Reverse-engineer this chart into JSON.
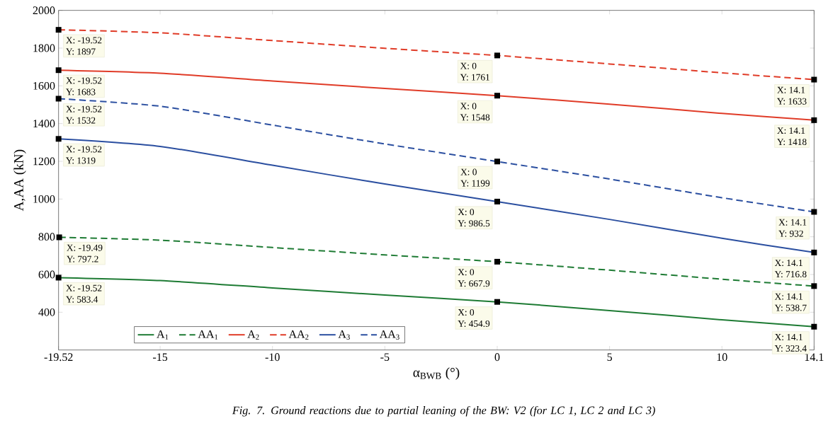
{
  "chart_data": {
    "type": "line",
    "xlabel": "α$_{BWB}$ (°)",
    "ylabel": "A,AA (kN)",
    "xlim": [
      -19.52,
      14.1
    ],
    "ylim": [
      200,
      2000
    ],
    "xticks": [
      -19.52,
      -15,
      -10,
      -5,
      0,
      5,
      10,
      14.1
    ],
    "yticks": [
      400,
      600,
      800,
      1000,
      1200,
      1400,
      1600,
      1800,
      2000
    ],
    "legend": "bottom left",
    "grid": false,
    "series": [
      {
        "name": "A$_{1}$",
        "color": "#1e7b34",
        "line_style": "solid",
        "x": [
          -19.52,
          -15,
          -10,
          -5,
          0,
          5,
          10,
          14.1
        ],
        "values": [
          583.4,
          568,
          529,
          491,
          454.9,
          409,
          360,
          323.4
        ]
      },
      {
        "name": "AA$_{1}$",
        "color": "#1e7b34",
        "line_style": "dashed",
        "x": [
          -19.49,
          -15,
          -10,
          -5,
          0,
          5,
          10,
          14.1
        ],
        "values": [
          797.2,
          782,
          743,
          704,
          667.9,
          623,
          575,
          538.7
        ]
      },
      {
        "name": "A$_{2}$",
        "color": "#e03c28",
        "line_style": "solid",
        "x": [
          -19.52,
          -15,
          -10,
          -5,
          0,
          5,
          10,
          14.1
        ],
        "values": [
          1683,
          1667,
          1626,
          1586,
          1548,
          1503,
          1454,
          1418
        ]
      },
      {
        "name": "AA$_{2}$",
        "color": "#e03c28",
        "line_style": "dashed",
        "x": [
          -19.52,
          -15,
          -10,
          -5,
          0,
          5,
          10,
          14.1
        ],
        "values": [
          1897,
          1881,
          1840,
          1799,
          1761,
          1716,
          1669,
          1633
        ]
      },
      {
        "name": "A$_{3}$",
        "color": "#2b4fa0",
        "line_style": "solid",
        "x": [
          -19.52,
          -15,
          -10,
          -5,
          0,
          5,
          10,
          14.1
        ],
        "values": [
          1319,
          1279,
          1179,
          1080,
          986.5,
          892,
          792,
          716.8
        ]
      },
      {
        "name": "AA$_{3}$",
        "color": "#2b4fa0",
        "line_style": "dashed",
        "x": [
          -19.52,
          -15,
          -10,
          -5,
          0,
          5,
          10,
          14.1
        ],
        "values": [
          1532,
          1492,
          1392,
          1292,
          1199,
          1106,
          1007,
          932
        ]
      }
    ],
    "annotations": [
      {
        "text": "X: -19.52",
        "x": -19.52,
        "y": 583.4
      },
      {
        "text": "Y: 583.4",
        "x": -19.52,
        "y": 583.4
      },
      {
        "text": "X: 0",
        "x": 0,
        "y": 454.9
      },
      {
        "text": "Y: 454.9",
        "x": 0,
        "y": 454.9
      },
      {
        "text": "X: 14.1",
        "x": 14.1,
        "y": 323.4
      },
      {
        "text": "Y: 323.4",
        "x": 14.1,
        "y": 323.4
      },
      {
        "text": "X: -19.49",
        "x": -19.49,
        "y": 797.2
      },
      {
        "text": "Y: 797.2",
        "x": -19.49,
        "y": 797.2
      },
      {
        "text": "X: 0",
        "x": 0,
        "y": 667.9
      },
      {
        "text": "Y: 667.9",
        "x": 0,
        "y": 667.9
      },
      {
        "text": "X: 14.1",
        "x": 14.1,
        "y": 538.7
      },
      {
        "text": "Y: 538.7",
        "x": 14.1,
        "y": 538.7
      },
      {
        "text": "X: -19.52",
        "x": -19.52,
        "y": 1683
      },
      {
        "text": "Y: 1683",
        "x": -19.52,
        "y": 1683
      },
      {
        "text": "X: 0",
        "x": 0,
        "y": 1548
      },
      {
        "text": "Y: 1548",
        "x": 0,
        "y": 1548
      },
      {
        "text": "X: 14.1",
        "x": 14.1,
        "y": 1418
      },
      {
        "text": "Y: 1418",
        "x": 14.1,
        "y": 1418
      },
      {
        "text": "X: -19.52",
        "x": -19.52,
        "y": 1897
      },
      {
        "text": "Y: 1897",
        "x": -19.52,
        "y": 1897
      },
      {
        "text": "X: 0",
        "x": 0,
        "y": 1761
      },
      {
        "text": "Y: 1761",
        "x": 0,
        "y": 1761
      },
      {
        "text": "X: 14.1",
        "x": 14.1,
        "y": 1633
      },
      {
        "text": "Y: 1633",
        "x": 14.1,
        "y": 1633
      },
      {
        "text": "X: -19.52",
        "x": -19.52,
        "y": 1319
      },
      {
        "text": "Y: 1319",
        "x": -19.52,
        "y": 1319
      },
      {
        "text": "X: 0",
        "x": 0,
        "y": 986.5
      },
      {
        "text": "Y: 986.5",
        "x": 0,
        "y": 986.5
      },
      {
        "text": "X: 14.1",
        "x": 14.1,
        "y": 716.8
      },
      {
        "text": "Y: 716.8",
        "x": 14.1,
        "y": 716.8
      },
      {
        "text": "X: -19.52",
        "x": -19.52,
        "y": 1532
      },
      {
        "text": "Y: 1532",
        "x": -19.52,
        "y": 1532
      },
      {
        "text": "X: 0",
        "x": 0,
        "y": 1199
      },
      {
        "text": "Y: 1199",
        "x": 0,
        "y": 1199
      },
      {
        "text": "X: 14.1",
        "x": 14.1,
        "y": 932
      },
      {
        "text": "Y: 932",
        "x": 14.1,
        "y": 932
      },
      "Fig. 7. Ground reactions due to partial leaning of the BW: V2 (for LC 1, LC 2 and LC 3)"
    ]
  }
}
